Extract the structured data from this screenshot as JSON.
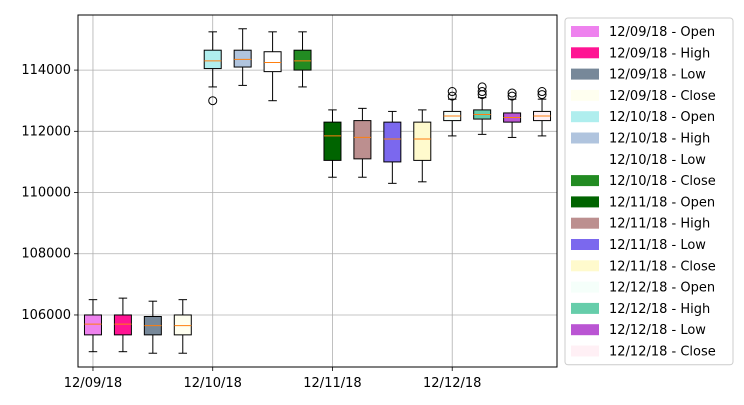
{
  "chart_data": {
    "type": "box",
    "title": "",
    "xlabel": "",
    "ylabel": "",
    "ylim": [
      104300,
      115800
    ],
    "yticks": [
      106000,
      108000,
      110000,
      112000,
      114000
    ],
    "ytick_labels": [
      "106000",
      "108000",
      "110000",
      "112000",
      "114000"
    ],
    "xtick_labels": [
      "12/09/18",
      "12/10/18",
      "12/11/18",
      "12/12/18"
    ],
    "grid": true,
    "legend_position": "outside-right",
    "median_color": "#ff7f0e",
    "series": [
      {
        "name": "12/09/18 - Open",
        "color": "#ee82ee",
        "min": 104800,
        "q1": 105350,
        "median": 105700,
        "q3": 106000,
        "max": 106500,
        "outliers": []
      },
      {
        "name": "12/09/18 - High",
        "color": "#ff1493",
        "min": 104800,
        "q1": 105350,
        "median": 105700,
        "q3": 106000,
        "max": 106550,
        "outliers": []
      },
      {
        "name": "12/09/18 - Low",
        "color": "#778899",
        "min": 104750,
        "q1": 105350,
        "median": 105650,
        "q3": 105950,
        "max": 106450,
        "outliers": []
      },
      {
        "name": "12/09/18 - Close",
        "color": "#fffff0",
        "min": 104750,
        "q1": 105350,
        "median": 105650,
        "q3": 106000,
        "max": 106500,
        "outliers": []
      },
      {
        "name": "12/10/18 - Open",
        "color": "#afeeee",
        "min": 113450,
        "q1": 114050,
        "median": 114300,
        "q3": 114650,
        "max": 115250,
        "outliers": [
          113000
        ]
      },
      {
        "name": "12/10/18 - High",
        "color": "#b0c4de",
        "min": 113500,
        "q1": 114100,
        "median": 114350,
        "q3": 114650,
        "max": 115350,
        "outliers": []
      },
      {
        "name": "12/10/18 - Low",
        "color": "#ffffff",
        "min": 113000,
        "q1": 113950,
        "median": 114250,
        "q3": 114600,
        "max": 115250,
        "outliers": []
      },
      {
        "name": "12/10/18 - Close",
        "color": "#228b22",
        "min": 113450,
        "q1": 114000,
        "median": 114300,
        "q3": 114650,
        "max": 115250,
        "outliers": []
      },
      {
        "name": "12/11/18 - Open",
        "color": "#006400",
        "min": 110500,
        "q1": 111050,
        "median": 111850,
        "q3": 112300,
        "max": 112700,
        "outliers": []
      },
      {
        "name": "12/11/18 - High",
        "color": "#bc8f8f",
        "min": 110500,
        "q1": 111100,
        "median": 111800,
        "q3": 112350,
        "max": 112750,
        "outliers": []
      },
      {
        "name": "12/11/18 - Low",
        "color": "#7b68ee",
        "min": 110300,
        "q1": 111000,
        "median": 111750,
        "q3": 112300,
        "max": 112650,
        "outliers": []
      },
      {
        "name": "12/11/18 - Close",
        "color": "#fffacd",
        "min": 110350,
        "q1": 111050,
        "median": 111750,
        "q3": 112300,
        "max": 112700,
        "outliers": []
      },
      {
        "name": "12/12/18 - Open",
        "color": "#f5fffa",
        "min": 111850,
        "q1": 112350,
        "median": 112500,
        "q3": 112650,
        "max": 113050,
        "outliers": [
          113150,
          113300
        ]
      },
      {
        "name": "12/12/18 - High",
        "color": "#66cdaa",
        "min": 111900,
        "q1": 112400,
        "median": 112550,
        "q3": 112700,
        "max": 113100,
        "outliers": [
          113200,
          113300,
          113450
        ]
      },
      {
        "name": "12/12/18 - Low",
        "color": "#ba55d3",
        "min": 111800,
        "q1": 112300,
        "median": 112450,
        "q3": 112600,
        "max": 113050,
        "outliers": [
          113150,
          113250
        ]
      },
      {
        "name": "12/12/18 - Close",
        "color": "#fff0f5",
        "min": 111850,
        "q1": 112350,
        "median": 112500,
        "q3": 112650,
        "max": 113050,
        "outliers": [
          113200,
          113300
        ]
      }
    ]
  }
}
